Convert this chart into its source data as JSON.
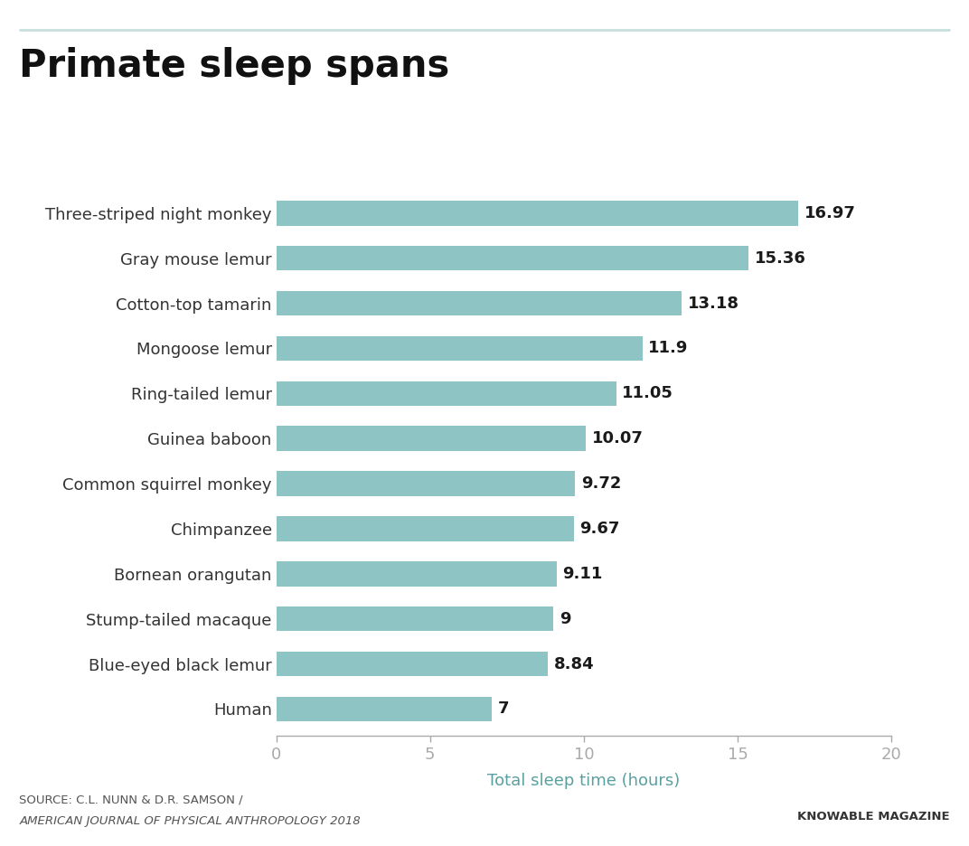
{
  "title": "Primate sleep spans",
  "categories": [
    "Human",
    "Blue-eyed black lemur",
    "Stump-tailed macaque",
    "Bornean orangutan",
    "Chimpanzee",
    "Common squirrel monkey",
    "Guinea baboon",
    "Ring-tailed lemur",
    "Mongoose lemur",
    "Cotton-top tamarin",
    "Gray mouse lemur",
    "Three-striped night monkey"
  ],
  "values": [
    7,
    8.84,
    9,
    9.11,
    9.67,
    9.72,
    10.07,
    11.05,
    11.9,
    13.18,
    15.36,
    16.97
  ],
  "bar_color": "#8ec4c4",
  "xlabel": "Total sleep time (hours)",
  "xlim": [
    0,
    20
  ],
  "xticks": [
    0,
    5,
    10,
    15,
    20
  ],
  "title_fontsize": 30,
  "label_fontsize": 13,
  "value_fontsize": 13,
  "xlabel_fontsize": 13,
  "xlabel_color": "#5aA0A0",
  "background_color": "#ffffff",
  "source_line1": "SOURCE: C.L. NUNN & D.R. SAMSON /",
  "source_line2": "AMERICAN JOURNAL OF PHYSICAL ANTHROPOLOGY 2018",
  "source_right": "KNOWABLE MAGAZINE",
  "source_fontsize": 9.5,
  "top_line_color": "#c8e0dc",
  "axis_color": "#aaaaaa",
  "tick_color": "#aaaaaa",
  "bar_height": 0.55
}
